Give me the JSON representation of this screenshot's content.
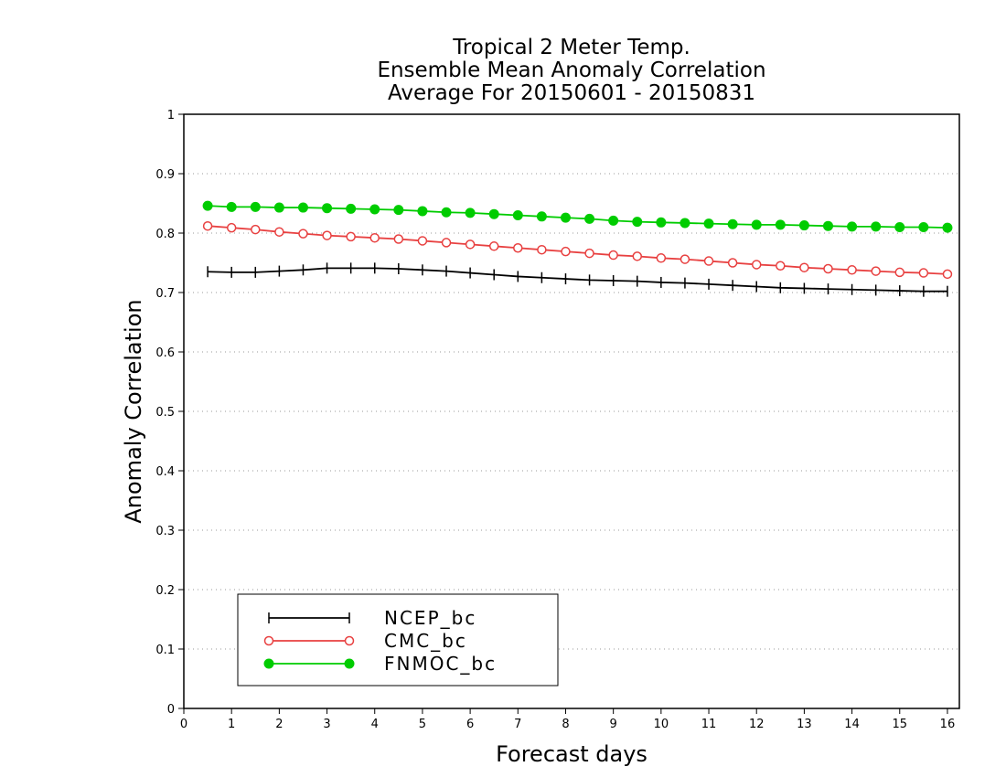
{
  "chart_data": {
    "type": "line",
    "title": [
      "Tropical 2 Meter Temp.",
      "Ensemble Mean Anomaly Correlation",
      "Average For 20150601 - 20150831"
    ],
    "xlabel": "Forecast days",
    "ylabel": "Anomaly Correlation",
    "xlim": [
      0,
      16.25
    ],
    "ylim": [
      0,
      1
    ],
    "xticks": [
      "0",
      "1",
      "2",
      "3",
      "4",
      "5",
      "6",
      "7",
      "8",
      "9",
      "10",
      "11",
      "12",
      "13",
      "14",
      "15",
      "16"
    ],
    "yticks": [
      "0",
      "0.1",
      "0.2",
      "0.3",
      "0.4",
      "0.5",
      "0.6",
      "0.7",
      "0.8",
      "0.9",
      "1"
    ],
    "grid": "dotted horizontal",
    "legend_position": "bottom-left",
    "x": [
      0.5,
      1,
      1.5,
      2,
      2.5,
      3,
      3.5,
      4,
      4.5,
      5,
      5.5,
      6,
      6.5,
      7,
      7.5,
      8,
      8.5,
      9,
      9.5,
      10,
      10.5,
      11,
      11.5,
      12,
      12.5,
      13,
      13.5,
      14,
      14.5,
      15,
      15.5,
      16
    ],
    "series": [
      {
        "name": "NCEP_bc",
        "color": "#000000",
        "marker": "plus",
        "values": [
          0.735,
          0.734,
          0.734,
          0.736,
          0.738,
          0.741,
          0.741,
          0.741,
          0.74,
          0.738,
          0.736,
          0.733,
          0.73,
          0.727,
          0.725,
          0.723,
          0.721,
          0.72,
          0.719,
          0.717,
          0.716,
          0.714,
          0.712,
          0.71,
          0.708,
          0.707,
          0.706,
          0.705,
          0.704,
          0.703,
          0.702,
          0.702
        ]
      },
      {
        "name": "CMC_bc",
        "color": "#e84040",
        "marker": "open-circle",
        "values": [
          0.812,
          0.809,
          0.806,
          0.802,
          0.799,
          0.796,
          0.794,
          0.792,
          0.79,
          0.787,
          0.784,
          0.781,
          0.778,
          0.775,
          0.772,
          0.769,
          0.766,
          0.763,
          0.761,
          0.758,
          0.756,
          0.753,
          0.75,
          0.747,
          0.745,
          0.742,
          0.74,
          0.738,
          0.736,
          0.734,
          0.733,
          0.731
        ]
      },
      {
        "name": "FNMOC_bc",
        "color": "#00cc00",
        "marker": "filled-circle",
        "values": [
          0.846,
          0.844,
          0.844,
          0.843,
          0.843,
          0.842,
          0.841,
          0.84,
          0.839,
          0.837,
          0.835,
          0.834,
          0.832,
          0.83,
          0.828,
          0.826,
          0.824,
          0.821,
          0.819,
          0.818,
          0.817,
          0.816,
          0.815,
          0.814,
          0.814,
          0.813,
          0.812,
          0.811,
          0.811,
          0.81,
          0.81,
          0.809
        ]
      }
    ]
  }
}
